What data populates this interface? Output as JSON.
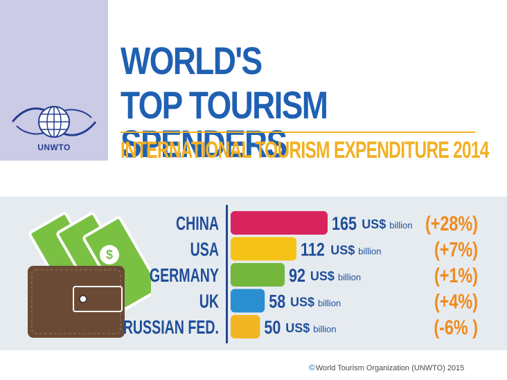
{
  "logo": {
    "text": "UNWTO"
  },
  "header": {
    "title_line1": "WORLD'S",
    "title_line2": "TOP TOURISM SPENDERS",
    "subtitle": "INTERNATIONAL TOURISM EXPENDITURE 2014"
  },
  "chart_data": {
    "type": "bar",
    "orientation": "horizontal",
    "title": "International Tourism Expenditure 2014",
    "categories": [
      "CHINA",
      "USA",
      "GERMANY",
      "UK",
      "RUSSIAN FED."
    ],
    "values": [
      165,
      112,
      92,
      58,
      50
    ],
    "value_labels": [
      "165",
      "112",
      "92",
      "58",
      "50"
    ],
    "unit": "US$ billion",
    "changes": [
      "(+28%)",
      "(+7%)",
      "(+1%)",
      "(+4%)",
      "(-6% )"
    ],
    "colors": [
      "#d8245e",
      "#f5c218",
      "#73b63c",
      "#2a8fd0",
      "#f2b624"
    ],
    "grid": false
  },
  "footer": {
    "copyright_symbol": "©",
    "text": "World Tourism Organization (UNWTO) 2015"
  }
}
